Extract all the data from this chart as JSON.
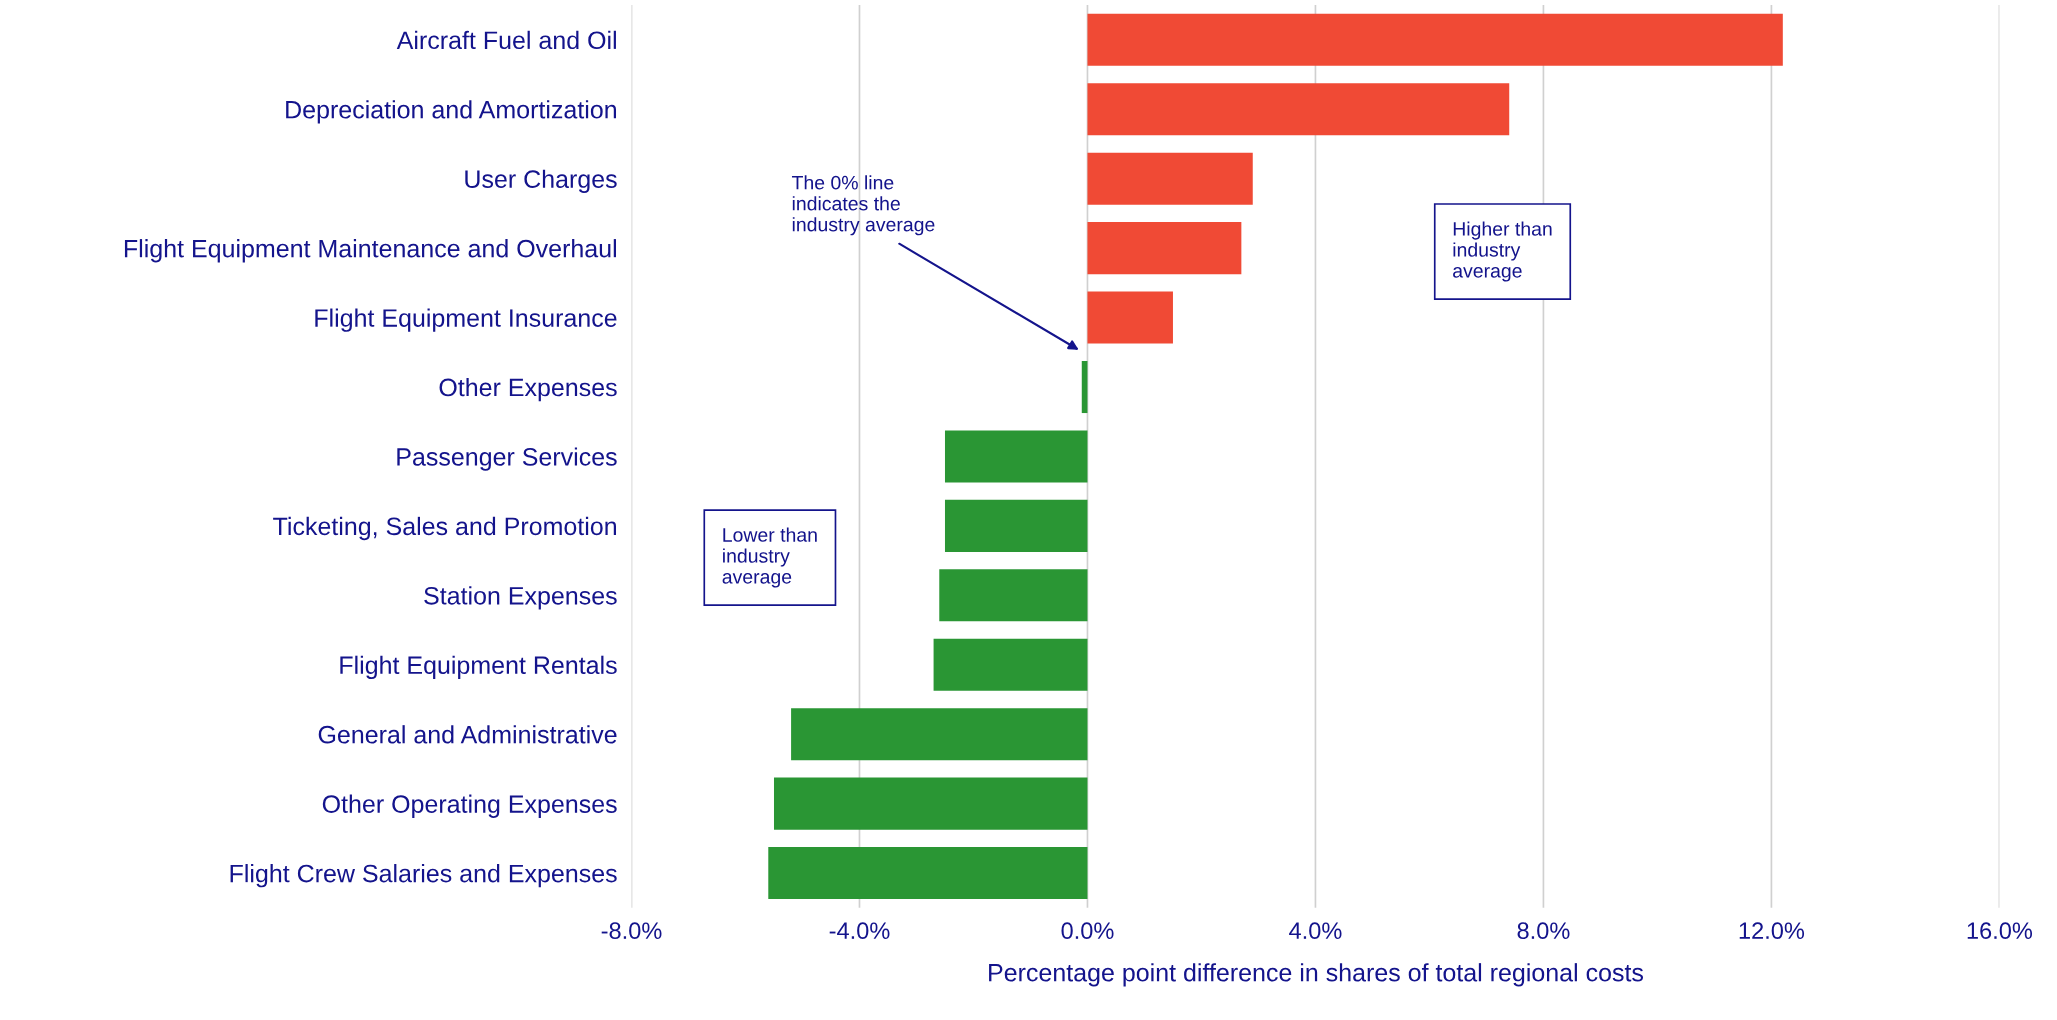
{
  "chart_data": {
    "type": "bar",
    "orientation": "horizontal",
    "categories": [
      "Aircraft Fuel and Oil",
      "Depreciation and Amortization",
      "User Charges",
      "Flight Equipment Maintenance and Overhaul",
      "Flight Equipment Insurance",
      "Other Expenses",
      "Passenger Services",
      "Ticketing, Sales and Promotion",
      "Station Expenses",
      "Flight Equipment Rentals",
      "General and Administrative",
      "Other Operating Expenses",
      "Flight Crew Salaries and Expenses"
    ],
    "values": [
      12.2,
      7.4,
      2.9,
      2.7,
      1.5,
      -0.1,
      -2.5,
      -2.5,
      -2.6,
      -2.7,
      -5.2,
      -5.5,
      -5.6
    ],
    "colors": [
      "#f04a35",
      "#f04a35",
      "#f04a35",
      "#f04a35",
      "#f04a35",
      "#2a9634",
      "#2a9634",
      "#2a9634",
      "#2a9634",
      "#2a9634",
      "#2a9634",
      "#2a9634",
      "#2a9634"
    ],
    "xlabel": "Percentage point difference in shares of total regional costs",
    "xlim": [
      -8,
      16
    ],
    "xticks": [
      {
        "value": -8,
        "label": "-8.0%"
      },
      {
        "value": -4,
        "label": "-4.0%"
      },
      {
        "value": 0,
        "label": "0.0%"
      },
      {
        "value": 4,
        "label": "4.0%"
      },
      {
        "value": 8,
        "label": "8.0%"
      },
      {
        "value": 12,
        "label": "12.0%"
      },
      {
        "value": 16,
        "label": "16.0%"
      }
    ],
    "grid": "x",
    "legend": false,
    "annotations": [
      "The 0% line\nindicates the\nindustry average",
      "Higher than\nindustry\naverage",
      "Lower than\nindustry\naverage"
    ]
  }
}
